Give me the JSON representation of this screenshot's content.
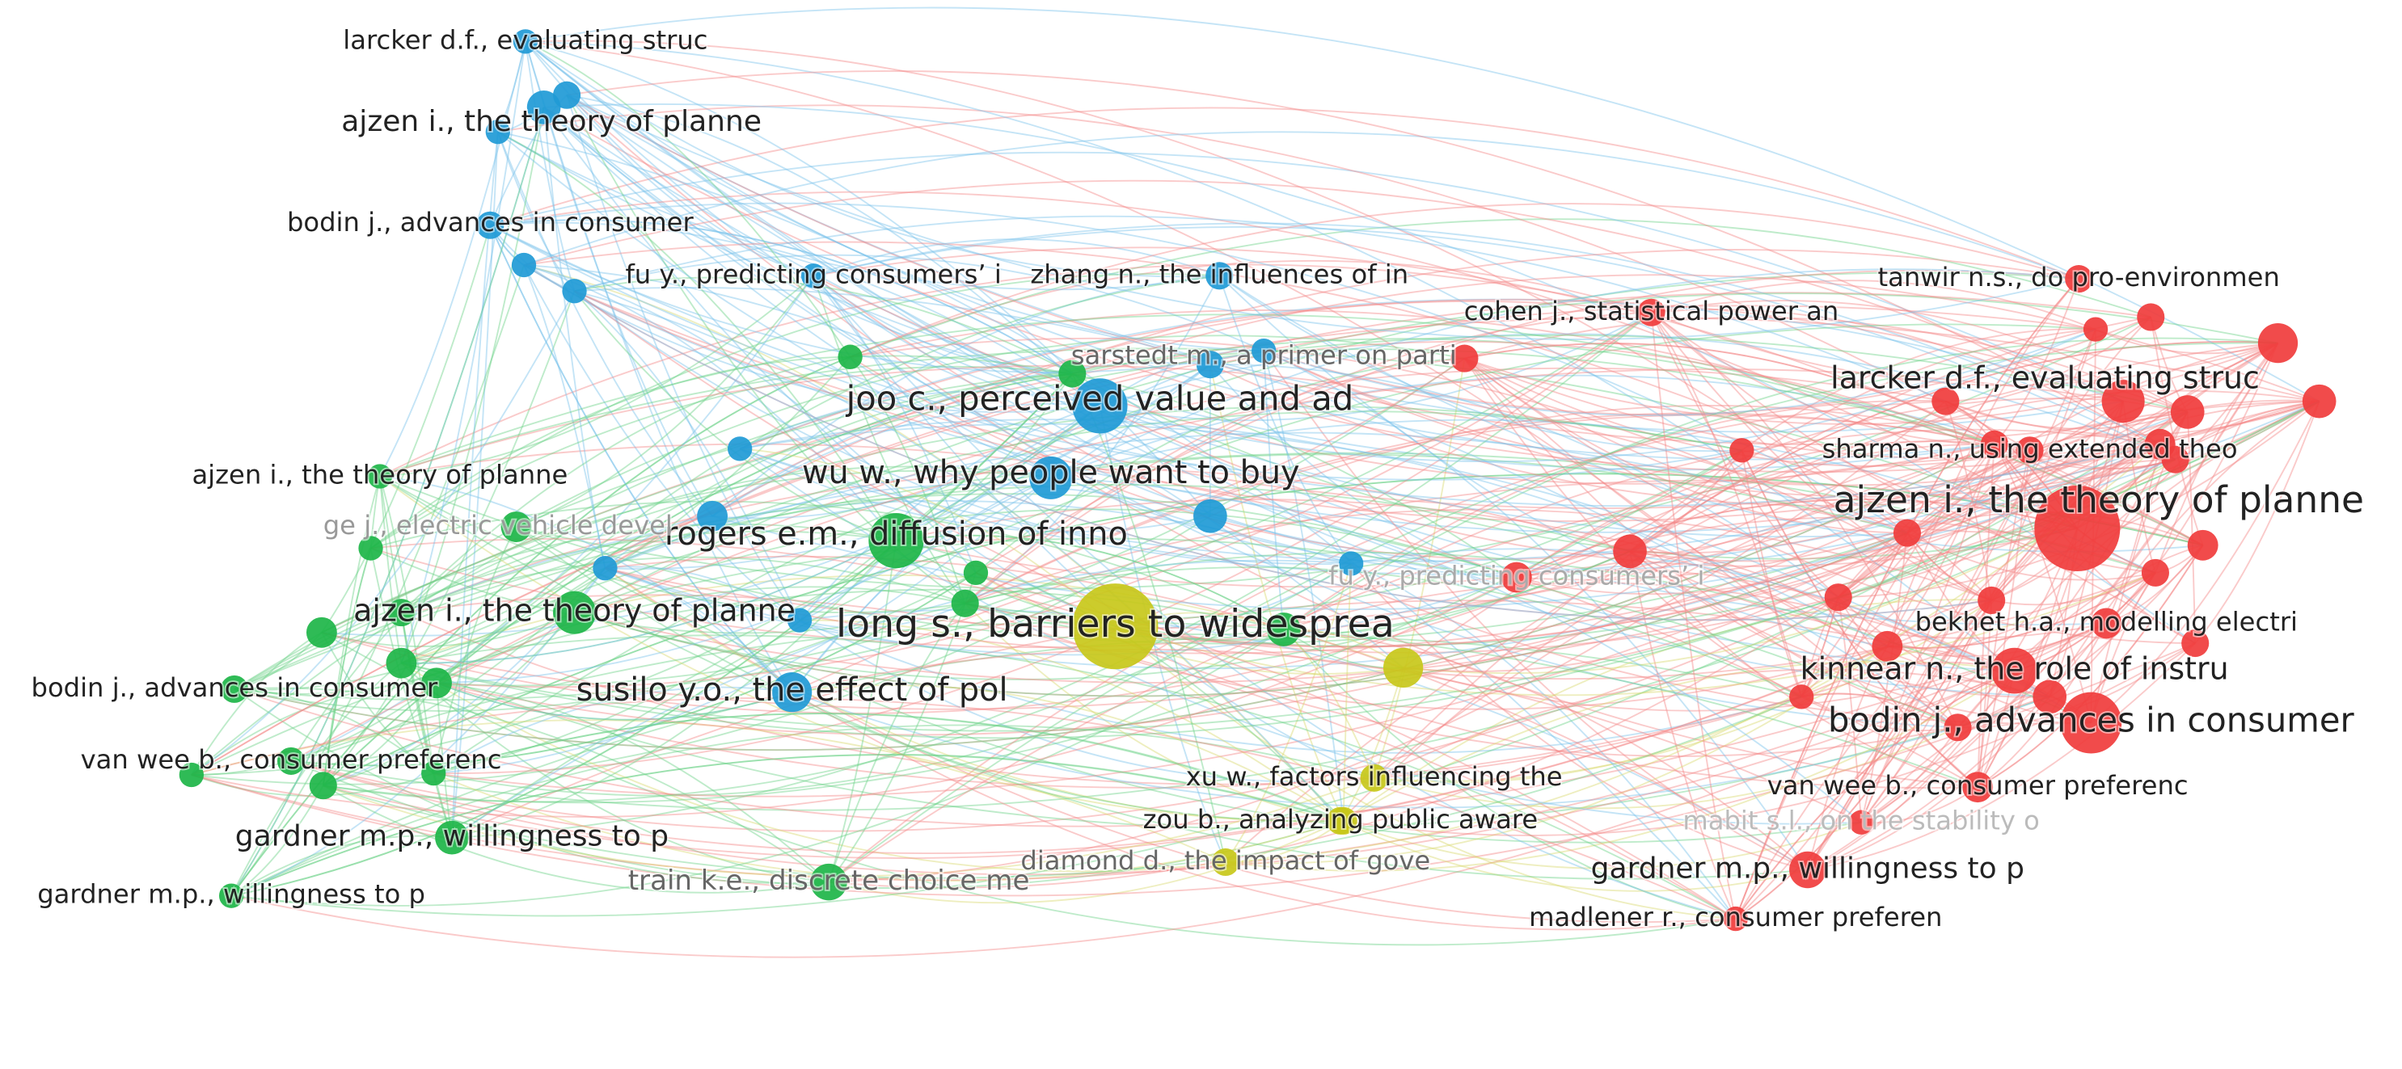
{
  "nodes": [
    {
      "label": "larcker d.f., evaluating struc"
    },
    {
      "label": "ajzen i., the theory of planne"
    },
    {
      "label": "bodin j., advances in consumer"
    },
    {
      "label": "fu y., predicting consumers’ i"
    },
    {
      "label": "zhang n., the influences of in"
    },
    {
      "label": "sarstedt m., a primer on parti"
    },
    {
      "label": "joo c., perceived value and ad"
    },
    {
      "label": "wu w., why people want to buy"
    },
    {
      "label": "rogers e.m., diffusion of inno"
    },
    {
      "label": "susilo y.o., the effect of pol"
    },
    {
      "label": "long s., barriers to widesprea"
    },
    {
      "label": "ajzen i., the theory of planne"
    },
    {
      "label": "ge j., electric vehicle devel"
    },
    {
      "label": "ajzen i., the theory of planne"
    },
    {
      "label": "bodin j., advances in consumer"
    },
    {
      "label": "van wee b., consumer preferenc"
    },
    {
      "label": "gardner m.p., willingness to p"
    },
    {
      "label": "gardner m.p., willingness to p"
    },
    {
      "label": "train k.e., discrete choice me"
    },
    {
      "label": "xu w., factors influencing the"
    },
    {
      "label": "zou b., analyzing public aware"
    },
    {
      "label": "diamond d., the impact of gove"
    },
    {
      "label": "cohen j., statistical power an"
    },
    {
      "label": "tanwir n.s., do pro-environmen"
    },
    {
      "label": "larcker d.f., evaluating struc"
    },
    {
      "label": "sharma n., using extended theo"
    },
    {
      "label": "ajzen i., the theory of planne"
    },
    {
      "label": "bekhet h.a., modelling electri"
    },
    {
      "label": "kinnear n., the role of instru"
    },
    {
      "label": "bodin j., advances in consumer"
    },
    {
      "label": "van wee b., consumer preferenc"
    },
    {
      "label": "mabit s.l., on the stability o"
    },
    {
      "label": "gardner m.p., willingness to p"
    },
    {
      "label": "madlener r., consumer preferen"
    },
    {
      "label": "fu y., predicting consumers’ i"
    }
  ]
}
